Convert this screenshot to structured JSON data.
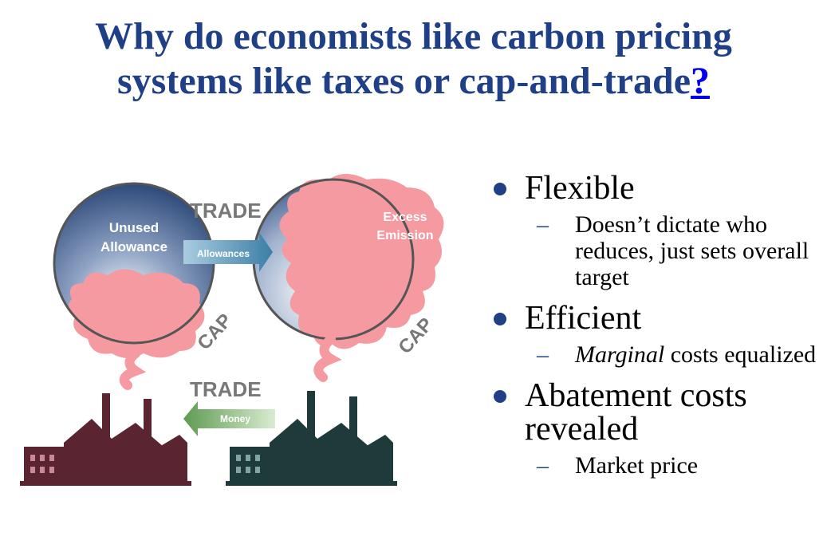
{
  "title": {
    "line1": "Why do economists like carbon pricing",
    "line2": "systems like taxes or cap-and-trade",
    "link": "?"
  },
  "diagram": {
    "trade_top": "TRADE",
    "trade_bottom": "TRADE",
    "unused_line1": "Unused",
    "unused_line2": "Allowance",
    "excess_line1": "Excess",
    "excess_line2": "Emission",
    "allowances_arrow": "Allowances",
    "money_arrow": "Money",
    "cap_left": "CAP",
    "cap_right": "CAP",
    "colors": {
      "cloud": "#f59aa0",
      "globe": "#3d5a8a",
      "arrow": "#6fa6c6",
      "money": "#8fbf7a",
      "factory_left": "#5a2430",
      "factory_right": "#1f3a3a"
    }
  },
  "bullets": [
    {
      "label": "Flexible",
      "sub": "Doesn’t dictate who reduces, just sets overall target"
    },
    {
      "label": "Efficient",
      "sub_italic": "Marginal",
      "sub_rest": " costs equalized"
    },
    {
      "label": "Abatement costs revealed",
      "sub": "Market price"
    }
  ],
  "dash": "–"
}
